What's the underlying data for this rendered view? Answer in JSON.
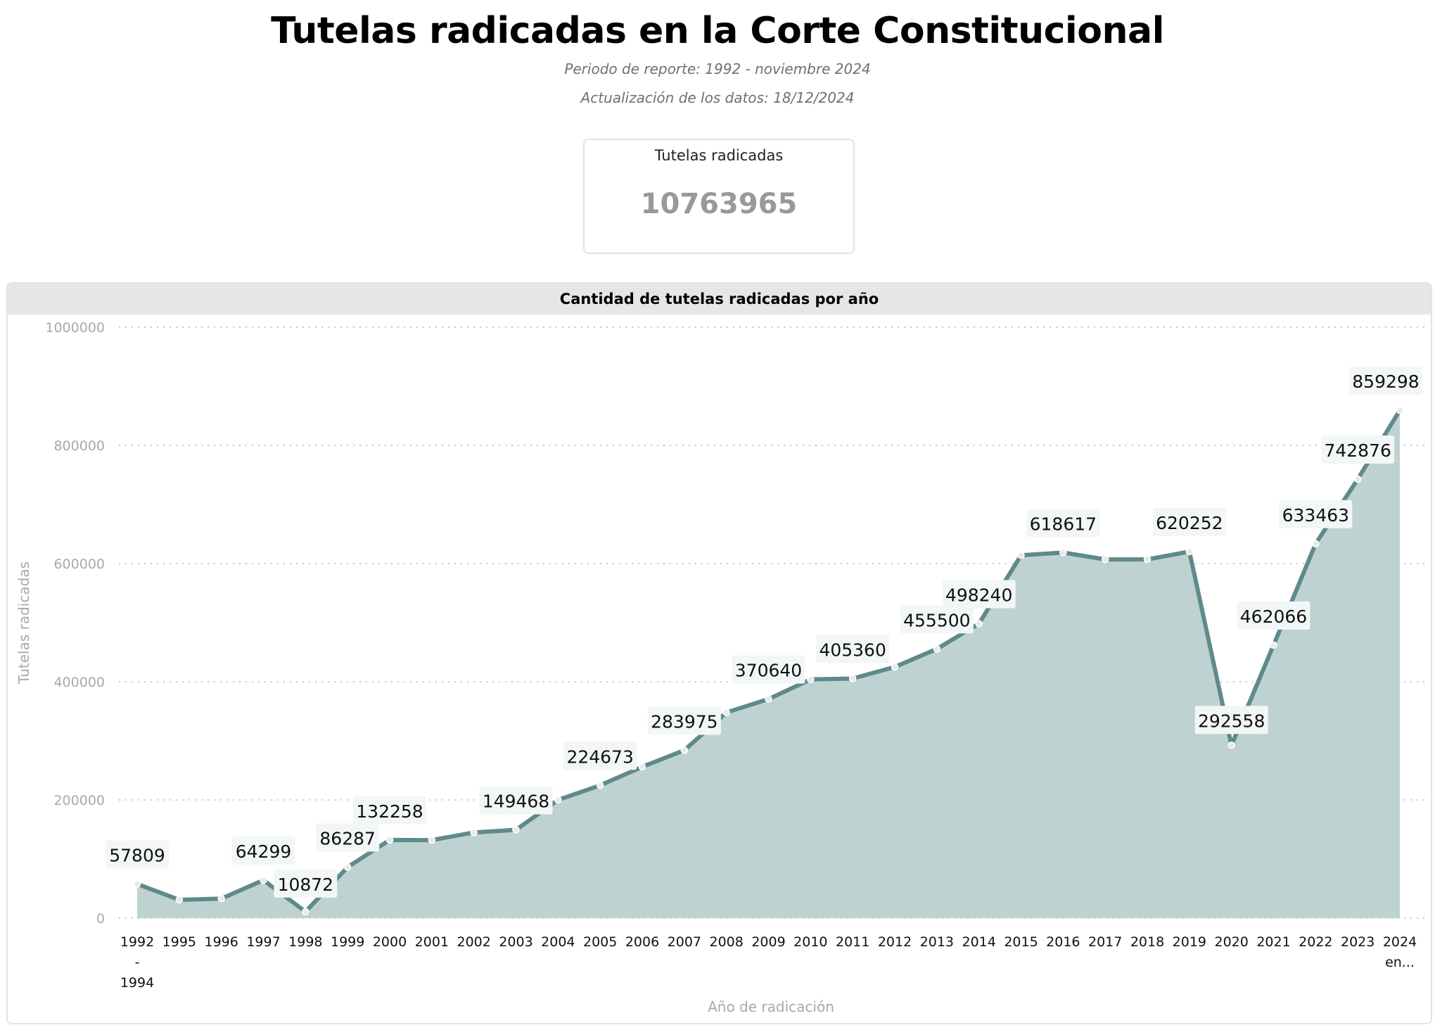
{
  "page": {
    "title": "Tutelas radicadas en la Corte Constitucional",
    "subtitle1": "Periodo de reporte: 1992 - noviembre 2024",
    "subtitle2": "Actualización de los datos: 18/12/2024"
  },
  "kpi": {
    "label": "Tutelas radicadas",
    "value": "10763965"
  },
  "colors": {
    "line": "#5f8a8b",
    "fill": "#bfd2d2",
    "grid": "#c8c8c8",
    "axis_text": "#a9a9a9",
    "label_bg": "#f2f6f6"
  },
  "chart_data": {
    "type": "area",
    "title": "Cantidad de tutelas radicadas por año",
    "xlabel": "Año de radicación",
    "ylabel": "Tutelas radicadas",
    "ylim": [
      0,
      1000000
    ],
    "yticks": [
      0,
      200000,
      400000,
      600000,
      800000,
      1000000
    ],
    "grid": "horizontal dotted",
    "categories": [
      "1992 - 1994",
      "1995",
      "1996",
      "1997",
      "1998",
      "1999",
      "2000",
      "2001",
      "2002",
      "2003",
      "2004",
      "2005",
      "2006",
      "2007",
      "2008",
      "2009",
      "2010",
      "2011",
      "2012",
      "2013",
      "2014",
      "2015",
      "2016",
      "2017",
      "2018",
      "2019",
      "2020",
      "2021",
      "2022",
      "2023",
      "2024 en..."
    ],
    "values": [
      57809,
      31000,
      33000,
      64299,
      10872,
      86287,
      132258,
      132000,
      145000,
      149468,
      200000,
      224673,
      256000,
      283975,
      348000,
      370640,
      404000,
      405360,
      425000,
      455500,
      498240,
      614000,
      618617,
      607000,
      607000,
      620252,
      292558,
      462066,
      633463,
      742876,
      859298
    ],
    "data_labels": [
      {
        "index": 0,
        "text": "57809"
      },
      {
        "index": 3,
        "text": "64299"
      },
      {
        "index": 4,
        "text": "10872"
      },
      {
        "index": 5,
        "text": "86287"
      },
      {
        "index": 6,
        "text": "132258"
      },
      {
        "index": 9,
        "text": "149468"
      },
      {
        "index": 11,
        "text": "224673"
      },
      {
        "index": 13,
        "text": "283975"
      },
      {
        "index": 15,
        "text": "370640"
      },
      {
        "index": 17,
        "text": "405360"
      },
      {
        "index": 19,
        "text": "455500"
      },
      {
        "index": 20,
        "text": "498240"
      },
      {
        "index": 22,
        "text": "618617"
      },
      {
        "index": 25,
        "text": "620252"
      },
      {
        "index": 26,
        "text": "292558"
      },
      {
        "index": 27,
        "text": "462066"
      },
      {
        "index": 28,
        "text": "633463"
      },
      {
        "index": 29,
        "text": "742876"
      },
      {
        "index": 30,
        "text": "859298"
      }
    ]
  }
}
